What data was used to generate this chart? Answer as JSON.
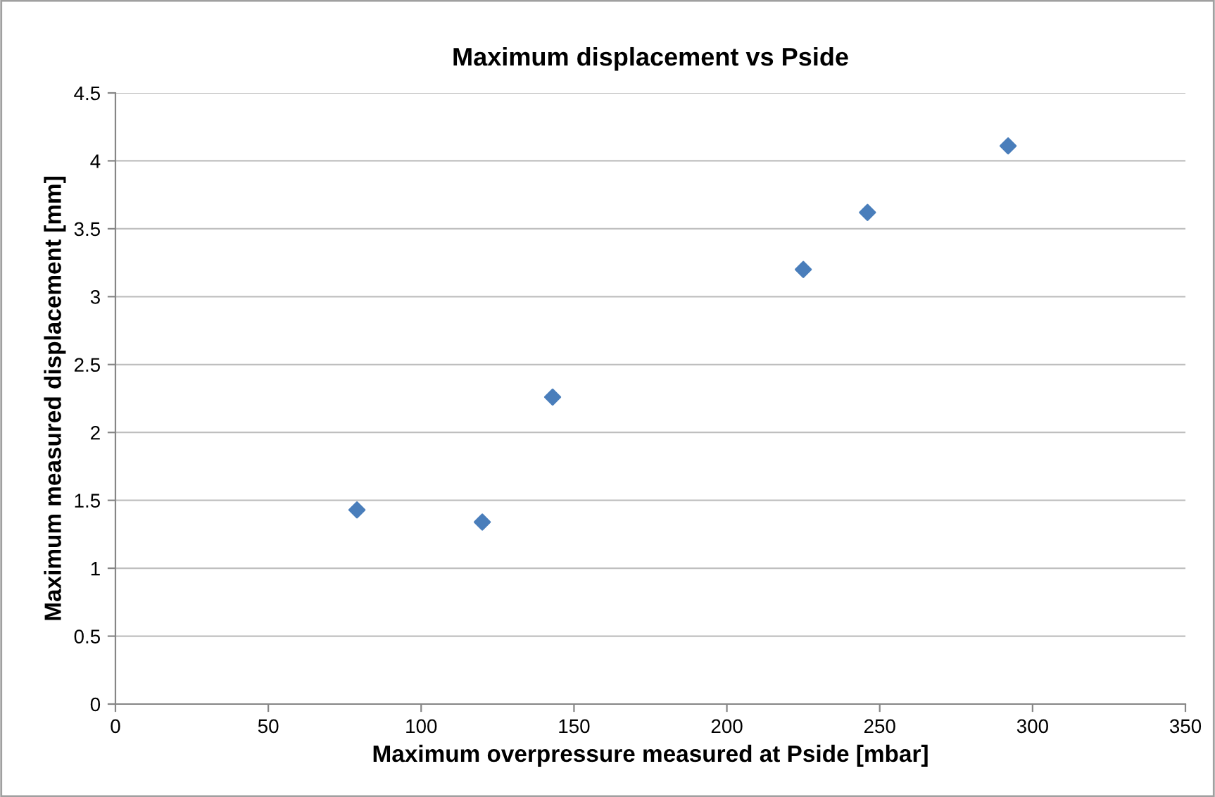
{
  "chart_data": {
    "type": "scatter",
    "title": "Maximum displacement vs Pside",
    "xlabel": "Maximum overpressure measured at Pside [mbar]",
    "ylabel": "Maximum measured displacement [mm]",
    "x": [
      79,
      120,
      143,
      225,
      246,
      292
    ],
    "values": [
      1.43,
      1.34,
      2.26,
      3.2,
      3.62,
      4.11
    ],
    "color": "#4a7ebb",
    "marker": "diamond",
    "xlim": [
      0,
      350
    ],
    "xticks": [
      0,
      50,
      100,
      150,
      200,
      250,
      300,
      350
    ],
    "ylim": [
      0,
      4.5
    ],
    "yticks": [
      0,
      0.5,
      1,
      1.5,
      2,
      2.5,
      3,
      3.5,
      4,
      4.5
    ],
    "grid": "y",
    "legend": false
  }
}
